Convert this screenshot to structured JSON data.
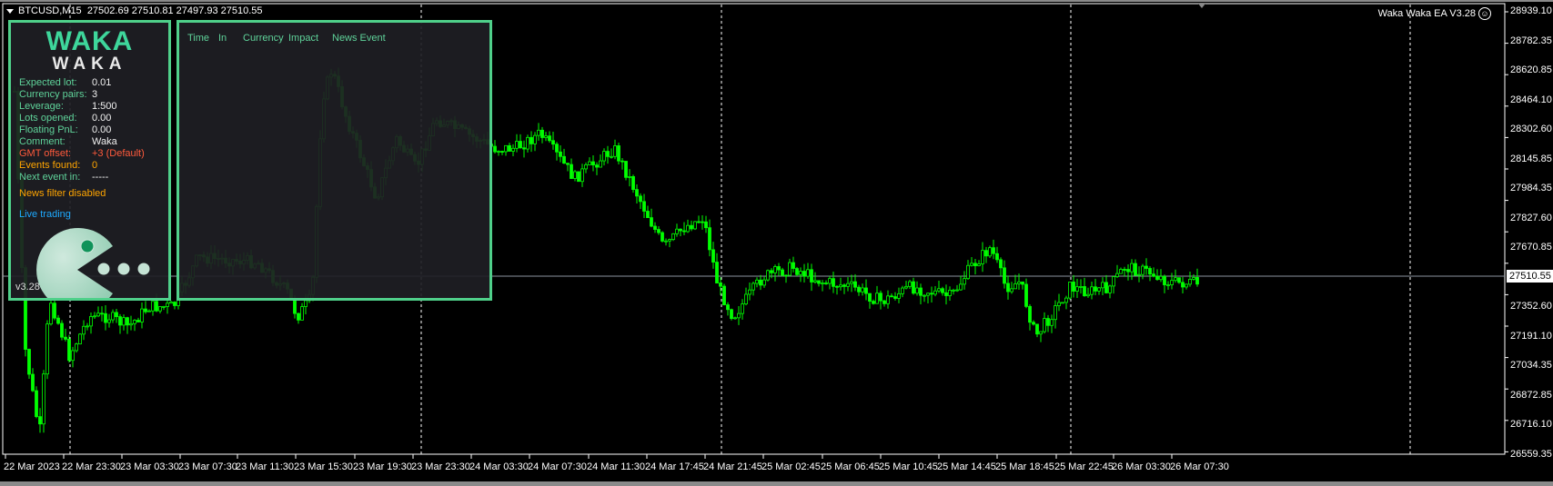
{
  "chart_header": {
    "symbol": "BTCUSD,M15",
    "ohlc": "27502.69 27510.81 27497.93 27510.55"
  },
  "ea_label": {
    "text": "Waka Waka EA  V3.28",
    "icon": "smiley-icon"
  },
  "price_axis": [
    "28939.10",
    "28782.35",
    "28620.85",
    "28464.10",
    "28302.60",
    "28145.85",
    "27984.35",
    "27827.60",
    "27670.85",
    "27510.55",
    "27352.60",
    "27191.10",
    "27034.35",
    "26872.85",
    "26716.10",
    "26559.35"
  ],
  "current_price": "27510.55",
  "time_axis": [
    "22 Mar 2023",
    "22 Mar 23:30",
    "23 Mar 03:30",
    "23 Mar 07:30",
    "23 Mar 11:30",
    "23 Mar 15:30",
    "23 Mar 19:30",
    "23 Mar 23:30",
    "24 Mar 03:30",
    "24 Mar 07:30",
    "24 Mar 11:30",
    "24 Mar 17:45",
    "24 Mar 21:45",
    "25 Mar 02:45",
    "25 Mar 06:45",
    "25 Mar 10:45",
    "25 Mar 14:45",
    "25 Mar 18:45",
    "25 Mar 22:45",
    "26 Mar 03:30",
    "26 Mar 07:30"
  ],
  "colors": {
    "candle": "#00ff00",
    "panel_border": "#4fd08a",
    "logo": "#3ed69b",
    "background": "#000000"
  },
  "info_panel": {
    "logo_top": "WAKA",
    "logo_bottom": "WAKA",
    "rows": [
      {
        "label": "Expected lot:",
        "value": "0.01",
        "color": "green"
      },
      {
        "label": "Currency pairs:",
        "value": "3",
        "color": "green"
      },
      {
        "label": "Leverage:",
        "value": "1:500",
        "color": "green"
      },
      {
        "label": "Lots opened:",
        "value": "0.00",
        "color": "green"
      },
      {
        "label": "Floating PnL:",
        "value": "0.00",
        "color": "green"
      },
      {
        "label": "Comment:",
        "value": "Waka",
        "color": "green"
      },
      {
        "label": "GMT offset:",
        "value": "+3 (Default)",
        "color": "red"
      },
      {
        "label": "Events found:",
        "value": "0",
        "color": "orange"
      },
      {
        "label": "Next event in:",
        "value": "-----",
        "color": "green"
      }
    ],
    "news_filter": "News filter disabled",
    "mode": "Live trading",
    "version": "v3.28"
  },
  "news_panel": {
    "headers": [
      "Time",
      "In",
      "Currency",
      "Impact",
      "News Event"
    ]
  }
}
